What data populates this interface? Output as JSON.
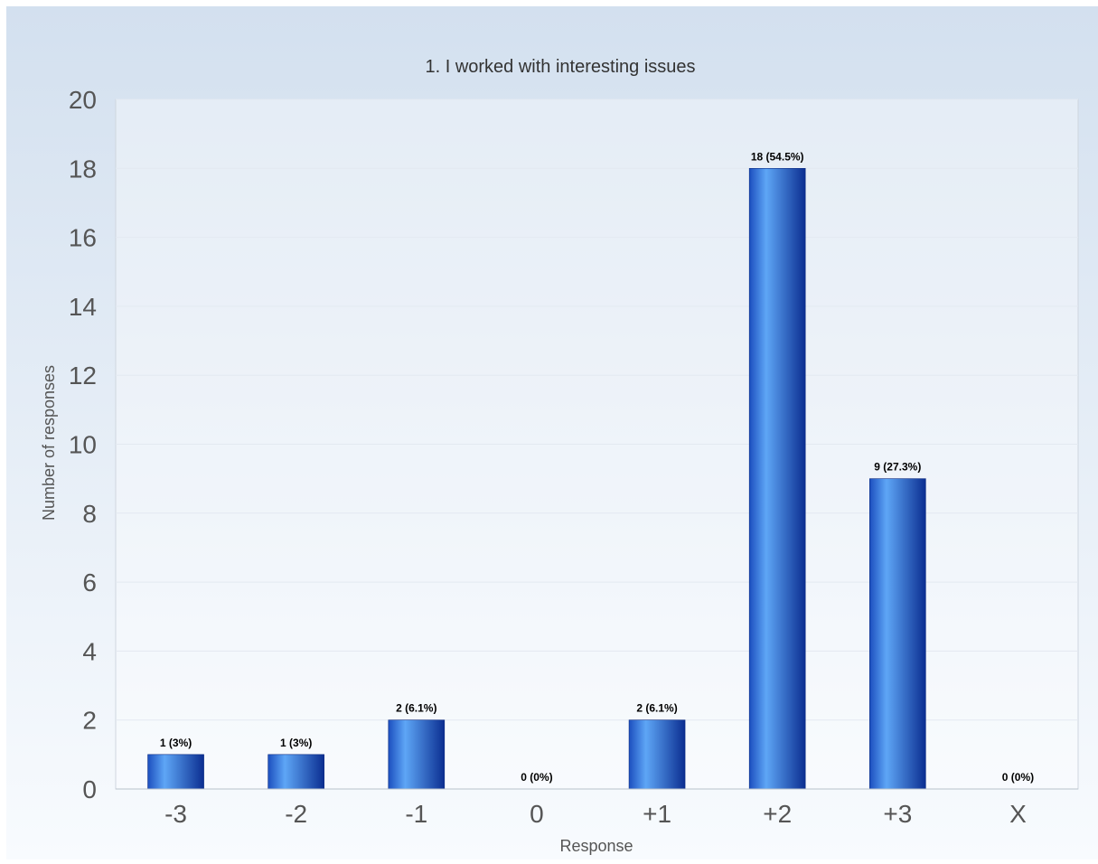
{
  "chart_data": {
    "type": "bar",
    "title": "1. I worked with interesting issues",
    "xlabel": "Response",
    "ylabel": "Number of responses",
    "categories": [
      "-3",
      "-2",
      "-1",
      "0",
      "+1",
      "+2",
      "+3",
      "X"
    ],
    "values": [
      1,
      1,
      2,
      0,
      2,
      18,
      9,
      0
    ],
    "data_labels": [
      "1 (3%)",
      "1 (3%)",
      "2 (6.1%)",
      "0 (0%)",
      "2 (6.1%)",
      "18 (54.5%)",
      "9 (27.3%)",
      "0 (0%)"
    ],
    "ylim": [
      0,
      20
    ],
    "yticks": [
      "0",
      "2",
      "4",
      "6",
      "8",
      "10",
      "12",
      "14",
      "16",
      "18",
      "20"
    ],
    "grid": true,
    "legend": "none",
    "colors": {
      "background_top": "#d3e0ef",
      "background_bottom": "#f8fbfe",
      "bar_light": "#5ea6f6",
      "bar_dark": "#0b2e91",
      "grid": "#e3e9f1",
      "axis_text": "#555555",
      "label_text": "#000000"
    }
  }
}
